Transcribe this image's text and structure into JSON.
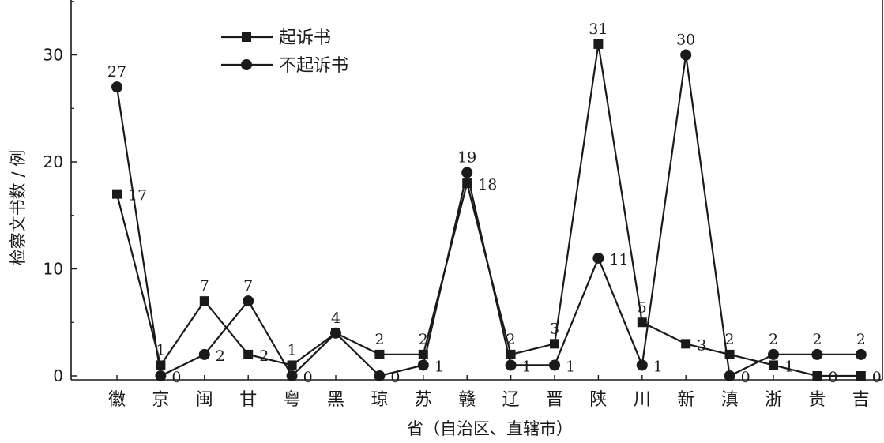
{
  "chart_data": {
    "type": "line",
    "categories": [
      "徽",
      "京",
      "闽",
      "甘",
      "粤",
      "黑",
      "琼",
      "苏",
      "赣",
      "辽",
      "晋",
      "陕",
      "川",
      "新",
      "滇",
      "浙",
      "贵",
      "吉"
    ],
    "xlabel": "省（自治区、直辖市）",
    "ylabel": "检察文书数 / 例",
    "ylim": [
      0,
      35
    ],
    "yticks": [
      0,
      10,
      20,
      30
    ],
    "legend_position": "top-left",
    "series": [
      {
        "name": "起诉书",
        "marker": "square",
        "values": [
          17,
          1,
          7,
          2,
          1,
          4,
          2,
          2,
          18,
          2,
          3,
          31,
          5,
          3,
          2,
          1,
          0,
          0
        ],
        "labels": [
          "17",
          "1",
          "7",
          "2",
          "1",
          "4",
          "2",
          "2",
          "18",
          "2",
          "3",
          "31",
          "5",
          "3",
          "2",
          "1",
          "0",
          "0"
        ]
      },
      {
        "name": "不起诉书",
        "marker": "circle",
        "values": [
          27,
          0,
          2,
          7,
          0,
          4,
          0,
          1,
          19,
          1,
          1,
          11,
          1,
          30,
          0,
          2,
          2,
          2
        ],
        "labels": [
          "27",
          "0",
          "2",
          "7",
          "0",
          "",
          "0",
          "1",
          "19",
          "1",
          "1",
          "11",
          "1",
          "30",
          "0",
          "2",
          "2",
          "2"
        ]
      }
    ],
    "colors": {
      "line": "#1a1a1a",
      "axis": "#1a1a1a"
    }
  }
}
